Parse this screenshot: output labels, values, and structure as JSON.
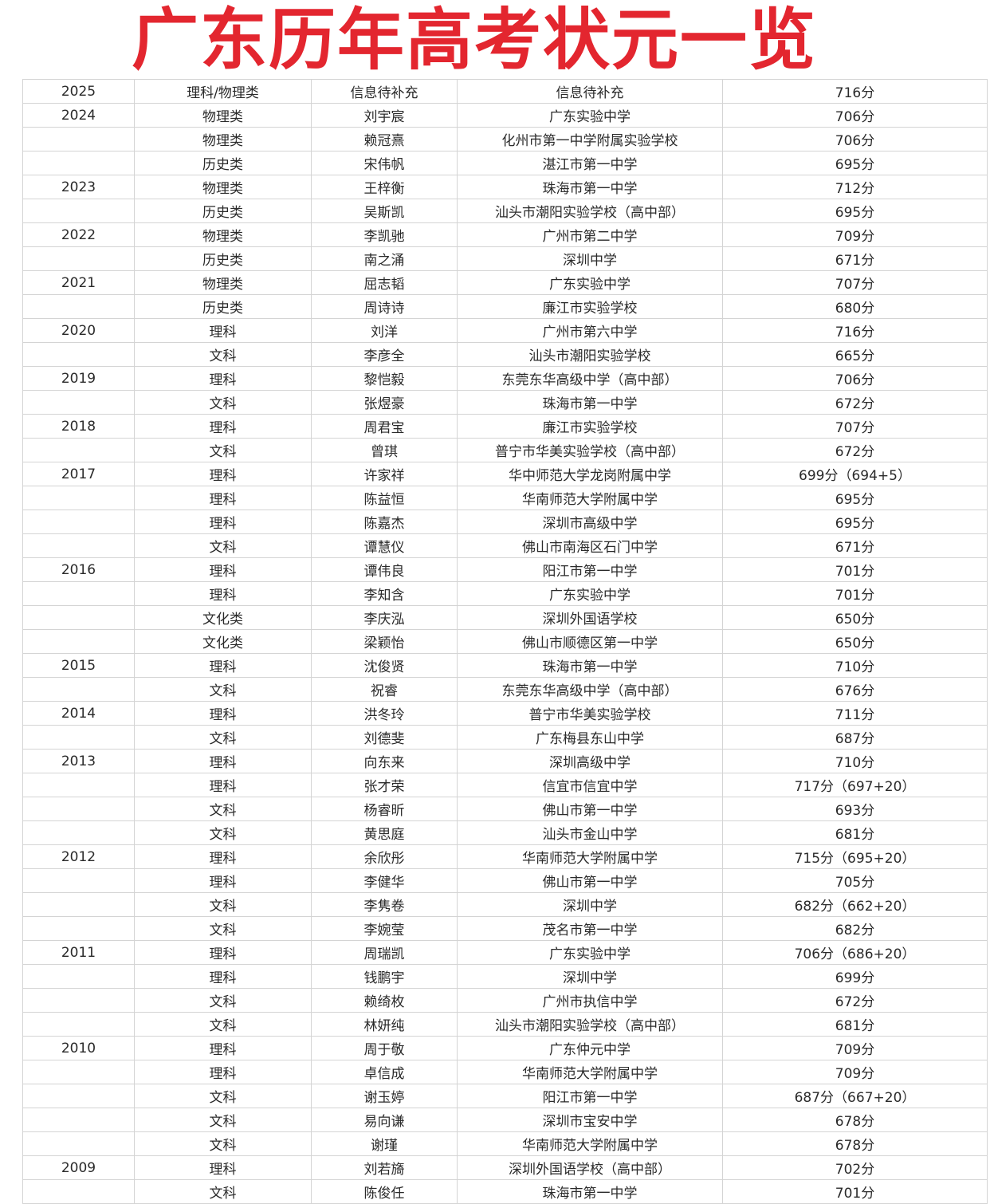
{
  "title": "广东历年高考状元一览",
  "rows": [
    [
      "2025",
      "理科/物理类",
      "信息待补充",
      "信息待补充",
      "716分"
    ],
    [
      "2024",
      "物理类",
      "刘宇宸",
      "广东实验中学",
      "706分"
    ],
    [
      "",
      "物理类",
      "赖冠熹",
      "化州市第一中学附属实验学校",
      "706分"
    ],
    [
      "",
      "历史类",
      "宋伟帆",
      "湛江市第一中学",
      "695分"
    ],
    [
      "2023",
      "物理类",
      "王梓衡",
      "珠海市第一中学",
      "712分"
    ],
    [
      "",
      "历史类",
      "吴斯凯",
      "汕头市潮阳实验学校（高中部）",
      "695分"
    ],
    [
      "2022",
      "物理类",
      "李凯驰",
      "广州市第二中学",
      "709分"
    ],
    [
      "",
      "历史类",
      "南之涌",
      "深圳中学",
      "671分"
    ],
    [
      "2021",
      "物理类",
      "屈志韬",
      "广东实验中学",
      "707分"
    ],
    [
      "",
      "历史类",
      "周诗诗",
      "廉江市实验学校",
      "680分"
    ],
    [
      "2020",
      "理科",
      "刘洋",
      "广州市第六中学",
      "716分"
    ],
    [
      "",
      "文科",
      "李彦全",
      "汕头市潮阳实验学校",
      "665分"
    ],
    [
      "2019",
      "理科",
      "黎恺毅",
      "东莞东华高级中学（高中部）",
      "706分"
    ],
    [
      "",
      "文科",
      "张煜豪",
      "珠海市第一中学",
      "672分"
    ],
    [
      "2018",
      "理科",
      "周君宝",
      "廉江市实验学校",
      "707分"
    ],
    [
      "",
      "文科",
      "曾琪",
      "普宁市华美实验学校（高中部）",
      "672分"
    ],
    [
      "2017",
      "理科",
      "许家祥",
      "华中师范大学龙岗附属中学",
      "699分（694+5）"
    ],
    [
      "",
      "理科",
      "陈益恒",
      "华南师范大学附属中学",
      "695分"
    ],
    [
      "",
      "理科",
      "陈嘉杰",
      "深圳市高级中学",
      "695分"
    ],
    [
      "",
      "文科",
      "谭慧仪",
      "佛山市南海区石门中学",
      "671分"
    ],
    [
      "2016",
      "理科",
      "谭伟良",
      "阳江市第一中学",
      "701分"
    ],
    [
      "",
      "理科",
      "李知含",
      "广东实验中学",
      "701分"
    ],
    [
      "",
      "文化类",
      "李庆泓",
      "深圳外国语学校",
      "650分"
    ],
    [
      "",
      "文化类",
      "梁颖怡",
      "佛山市顺德区第一中学",
      "650分"
    ],
    [
      "2015",
      "理科",
      "沈俊贤",
      "珠海市第一中学",
      "710分"
    ],
    [
      "",
      "文科",
      "祝睿",
      "东莞东华高级中学（高中部）",
      "676分"
    ],
    [
      "2014",
      "理科",
      "洪冬玲",
      "普宁市华美实验学校",
      "711分"
    ],
    [
      "",
      "文科",
      "刘德斐",
      "广东梅县东山中学",
      "687分"
    ],
    [
      "2013",
      "理科",
      "向东来",
      "深圳高级中学",
      "710分"
    ],
    [
      "",
      "理科",
      "张才荣",
      "信宜市信宜中学",
      "717分（697+20）"
    ],
    [
      "",
      "文科",
      "杨睿昕",
      "佛山市第一中学",
      "693分"
    ],
    [
      "",
      "文科",
      "黄思庭",
      "汕头市金山中学",
      "681分"
    ],
    [
      "2012",
      "理科",
      "余欣彤",
      "华南师范大学附属中学",
      "715分（695+20）"
    ],
    [
      "",
      "理科",
      "李健华",
      "佛山市第一中学",
      "705分"
    ],
    [
      "",
      "文科",
      "李隽卷",
      "深圳中学",
      "682分（662+20）"
    ],
    [
      "",
      "文科",
      "李婉莹",
      "茂名市第一中学",
      "682分"
    ],
    [
      "2011",
      "理科",
      "周瑞凯",
      "广东实验中学",
      "706分（686+20）"
    ],
    [
      "",
      "理科",
      "钱鹏宇",
      "深圳中学",
      "699分"
    ],
    [
      "",
      "文科",
      "赖绮枚",
      "广州市执信中学",
      "672分"
    ],
    [
      "",
      "文科",
      "林妍纯",
      "汕头市潮阳实验学校（高中部）",
      "681分"
    ],
    [
      "2010",
      "理科",
      "周于敬",
      "广东仲元中学",
      "709分"
    ],
    [
      "",
      "理科",
      "卓信成",
      "华南师范大学附属中学",
      "709分"
    ],
    [
      "",
      "文科",
      "谢玉婷",
      "阳江市第一中学",
      "687分（667+20）"
    ],
    [
      "",
      "文科",
      "易向谦",
      "深圳市宝安中学",
      "678分"
    ],
    [
      "",
      "文科",
      "谢瑾",
      "华南师范大学附属中学",
      "678分"
    ],
    [
      "2009",
      "理科",
      "刘若旖",
      "深圳外国语学校（高中部）",
      "702分"
    ],
    [
      "",
      "文科",
      "陈俊任",
      "珠海市第一中学",
      "701分"
    ]
  ]
}
